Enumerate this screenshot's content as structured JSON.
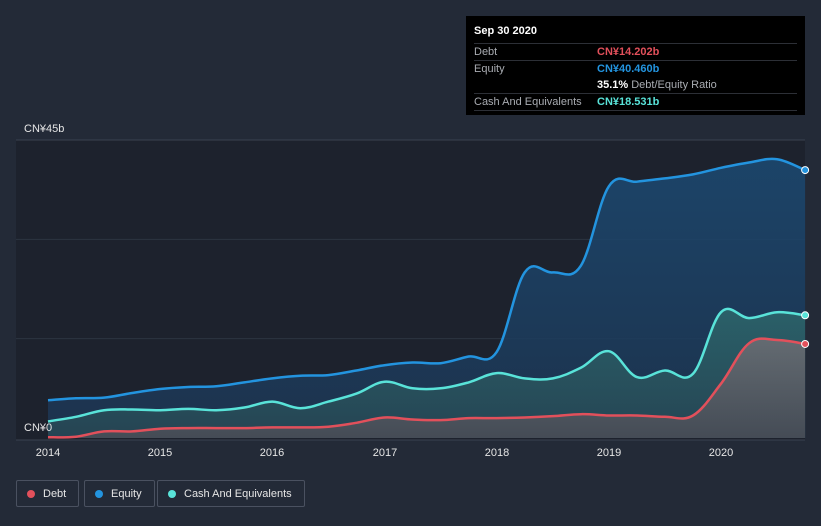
{
  "chart_data": {
    "type": "area",
    "title": "",
    "xlabel": "",
    "ylabel": "",
    "ylim": [
      0,
      45
    ],
    "y_unit": "CN¥ billions",
    "x_ticks": [
      "2014",
      "2015",
      "2016",
      "2017",
      "2018",
      "2019",
      "2020"
    ],
    "y_ticks": [
      "CN¥0",
      "CN¥45b"
    ],
    "series": [
      {
        "name": "Equity",
        "color": "#2394df",
        "x": [
          2014.0,
          2014.25,
          2014.5,
          2014.75,
          2015.0,
          2015.25,
          2015.5,
          2015.75,
          2016.0,
          2016.25,
          2016.5,
          2016.75,
          2017.0,
          2017.25,
          2017.5,
          2017.75,
          2018.0,
          2018.25,
          2018.5,
          2018.75,
          2019.0,
          2019.25,
          2019.5,
          2019.75,
          2020.0,
          2020.25,
          2020.5,
          2020.75
        ],
        "values": [
          5.7,
          6.0,
          6.1,
          6.8,
          7.4,
          7.7,
          7.8,
          8.4,
          9.0,
          9.4,
          9.5,
          10.2,
          11.0,
          11.4,
          11.3,
          12.3,
          13.0,
          25.0,
          25.0,
          26.0,
          38.0,
          38.7,
          39.2,
          39.8,
          40.8,
          41.6,
          42.1,
          40.46
        ]
      },
      {
        "name": "Cash And Equivalents",
        "color": "#59e3d9",
        "x": [
          2014.0,
          2014.25,
          2014.5,
          2014.75,
          2015.0,
          2015.25,
          2015.5,
          2015.75,
          2016.0,
          2016.25,
          2016.5,
          2016.75,
          2017.0,
          2017.25,
          2017.5,
          2017.75,
          2018.0,
          2018.25,
          2018.5,
          2018.75,
          2019.0,
          2019.25,
          2019.5,
          2019.75,
          2020.0,
          2020.25,
          2020.5,
          2020.75
        ],
        "values": [
          2.5,
          3.2,
          4.2,
          4.3,
          4.2,
          4.4,
          4.2,
          4.6,
          5.5,
          4.5,
          5.5,
          6.7,
          8.5,
          7.5,
          7.5,
          8.4,
          9.8,
          9.0,
          9.0,
          10.6,
          13.1,
          9.2,
          10.2,
          9.7,
          19.0,
          18.1,
          19.0,
          18.531
        ]
      },
      {
        "name": "Debt",
        "color": "#e2505b",
        "x": [
          2014.0,
          2014.25,
          2014.5,
          2014.75,
          2015.0,
          2015.25,
          2015.5,
          2015.75,
          2016.0,
          2016.25,
          2016.5,
          2016.75,
          2017.0,
          2017.25,
          2017.5,
          2017.75,
          2018.0,
          2018.25,
          2018.5,
          2018.75,
          2019.0,
          2019.25,
          2019.5,
          2019.75,
          2020.0,
          2020.25,
          2020.5,
          2020.75
        ],
        "values": [
          0.1,
          0.2,
          1.0,
          1.0,
          1.4,
          1.5,
          1.5,
          1.5,
          1.6,
          1.6,
          1.7,
          2.3,
          3.1,
          2.8,
          2.7,
          3.0,
          3.0,
          3.1,
          3.3,
          3.6,
          3.4,
          3.4,
          3.2,
          3.4,
          8.2,
          14.3,
          14.8,
          14.202
        ]
      }
    ],
    "x_range": [
      2013.86,
      2020.75
    ]
  },
  "tooltip": {
    "date": "Sep 30 2020",
    "debt_label": "Debt",
    "debt_value": "CN¥14.202b",
    "equity_label": "Equity",
    "equity_value": "CN¥40.460b",
    "ratio_value": "35.1%",
    "ratio_label": "Debt/Equity Ratio",
    "cash_label": "Cash And Equivalents",
    "cash_value": "CN¥18.531b"
  },
  "legend": {
    "debt": "Debt",
    "equity": "Equity",
    "cash": "Cash And Equivalents"
  },
  "colors": {
    "background": "#232a37",
    "plot_bg": "#1d222d",
    "debt": "#e2505b",
    "equity": "#2394df",
    "cash": "#59e3d9"
  }
}
